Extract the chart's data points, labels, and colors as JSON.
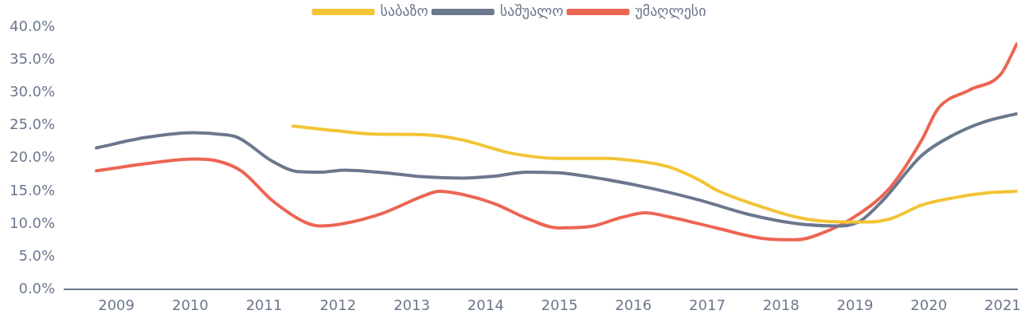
{
  "chart_data": {
    "type": "line",
    "legend": "top",
    "grid": false,
    "marker": "none",
    "line_style": "solid",
    "xlim": [
      2008.3,
      2021.2
    ],
    "xticks": [
      2009,
      2010,
      2011,
      2012,
      2013,
      2014,
      2015,
      2016,
      2017,
      2018,
      2019,
      2020,
      2021
    ],
    "ylim": [
      0,
      40
    ],
    "yticks": [
      {
        "value": 0,
        "label": "0.0%"
      },
      {
        "value": 5,
        "label": "5.0%"
      },
      {
        "value": 10,
        "label": "10.0%"
      },
      {
        "value": 15,
        "label": "15.0%"
      },
      {
        "value": 20,
        "label": "20.0%"
      },
      {
        "value": 25,
        "label": "25.0%"
      },
      {
        "value": 30,
        "label": "30.0%"
      },
      {
        "value": 35,
        "label": "35.0%"
      },
      {
        "value": 40,
        "label": "40.0%"
      }
    ],
    "series": [
      {
        "name": "საბაზო",
        "color": "#f2c435",
        "x": [
          2011.39,
          2011.98,
          2012.51,
          2013.16,
          2013.69,
          2014.07,
          2014.34,
          2014.98,
          2015.62,
          2016.05,
          2016.48,
          2016.91,
          2017.12,
          2017.66,
          2018.19,
          2018.62,
          2019.16,
          2019.48,
          2019.91,
          2020.34,
          2020.76,
          2021.19
        ],
        "values": [
          24.9,
          24.2,
          23.7,
          23.6,
          22.8,
          21.6,
          20.8,
          20.0,
          20.0,
          19.6,
          18.7,
          16.6,
          15.2,
          12.9,
          11.1,
          10.4,
          10.3,
          10.8,
          12.9,
          14.0,
          14.7,
          15.0
        ]
      },
      {
        "name": "საშუალო",
        "color": "#6b778d",
        "x": [
          2008.73,
          2009.41,
          2010.05,
          2010.37,
          2010.64,
          2011.12,
          2011.44,
          2011.76,
          2012.09,
          2012.62,
          2013.16,
          2013.69,
          2014.12,
          2014.55,
          2014.98,
          2015.62,
          2016.26,
          2016.91,
          2017.55,
          2018.19,
          2018.73,
          2019.05,
          2019.37,
          2019.91,
          2020.34,
          2020.76,
          2021.19
        ],
        "values": [
          21.6,
          23.2,
          23.9,
          23.7,
          23.2,
          19.5,
          18.0,
          17.9,
          18.2,
          17.8,
          17.2,
          17.0,
          17.3,
          17.9,
          17.8,
          16.8,
          15.4,
          13.6,
          11.5,
          10.1,
          9.7,
          10.3,
          13.5,
          20.5,
          23.6,
          25.6,
          26.8
        ]
      },
      {
        "name": "უმაღლესი",
        "color": "#ec6553",
        "x": [
          2008.73,
          2009.41,
          2010.05,
          2010.37,
          2010.69,
          2011.12,
          2011.55,
          2011.76,
          2012.09,
          2012.62,
          2013.16,
          2013.37,
          2013.69,
          2014.12,
          2014.55,
          2014.98,
          2015.41,
          2015.84,
          2016.16,
          2016.48,
          2017.12,
          2017.76,
          2018.19,
          2018.62,
          2019.05,
          2019.48,
          2019.91,
          2020.12,
          2020.55,
          2020.98,
          2021.19
        ],
        "values": [
          18.1,
          19.2,
          19.9,
          19.6,
          18.1,
          13.5,
          10.3,
          9.7,
          10.1,
          11.7,
          14.3,
          15.0,
          14.5,
          13.1,
          10.9,
          9.4,
          9.6,
          11.0,
          11.7,
          11.1,
          9.4,
          7.8,
          7.6,
          8.9,
          11.5,
          15.6,
          22.9,
          27.5,
          30.4,
          32.9,
          37.4
        ]
      }
    ]
  }
}
